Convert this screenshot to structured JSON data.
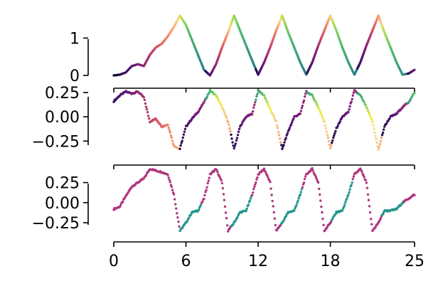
{
  "chart_data": [
    {
      "type": "line",
      "panel": "top",
      "x_range": [
        0,
        25
      ],
      "ylim": [
        0,
        1.6
      ],
      "y_ticks": [
        0,
        1
      ],
      "y_tick_labels": [
        "0",
        "1"
      ],
      "colormap": "plasma-like (purple → pink → orange → yellow → teal)",
      "series": [
        {
          "x": [
            0,
            0.5,
            1.0,
            1.5,
            2.0,
            2.5,
            3.0,
            3.5,
            4.0,
            4.5,
            5.0,
            5.5,
            6.0,
            6.5,
            7.0,
            7.5,
            8.0,
            8.5,
            9.0,
            9.5,
            10.0,
            10.5,
            11.0,
            11.5,
            12.0,
            12.5,
            13.0,
            13.5,
            14.0,
            14.5,
            15.0,
            15.5,
            16.0,
            16.5,
            17.0,
            17.5,
            18.0,
            18.5,
            19.0,
            19.5,
            20.0,
            20.5,
            21.0,
            21.5,
            22.0,
            22.5,
            23.0,
            23.5,
            24.0,
            24.5,
            25.0
          ],
          "y": [
            0.0,
            0.02,
            0.08,
            0.25,
            0.3,
            0.25,
            0.55,
            0.75,
            0.85,
            1.05,
            1.3,
            1.6,
            1.35,
            0.95,
            0.55,
            0.15,
            0.0,
            0.3,
            0.75,
            1.15,
            1.6,
            1.2,
            0.8,
            0.4,
            0.02,
            0.35,
            0.75,
            1.2,
            1.6,
            1.15,
            0.75,
            0.35,
            0.02,
            0.35,
            0.8,
            1.2,
            1.6,
            1.2,
            0.75,
            0.35,
            0.02,
            0.35,
            0.8,
            1.2,
            1.6,
            1.15,
            0.75,
            0.35,
            0.02,
            0.05,
            0.15
          ]
        }
      ]
    },
    {
      "type": "scatter",
      "panel": "middle",
      "x_range": [
        0,
        25
      ],
      "ylim": [
        -0.38,
        0.28
      ],
      "y_ticks": [
        0.25,
        0.0,
        -0.25
      ],
      "y_tick_labels": [
        "0.25",
        "0.00",
        "−0.25"
      ],
      "series": [
        {
          "x": [
            0,
            0.5,
            1.0,
            1.5,
            2.0,
            2.5,
            3.0,
            3.5,
            4.0,
            4.5,
            5.0,
            5.5,
            6.0,
            6.5,
            7.0,
            7.5,
            8.0,
            8.5,
            9.0,
            9.5,
            10.0,
            10.5,
            11.0,
            11.5,
            12.0,
            12.5,
            13.0,
            13.5,
            14.0,
            14.5,
            15.0,
            15.5,
            16.0,
            16.5,
            17.0,
            17.5,
            18.0,
            18.5,
            19.0,
            19.5,
            20.0,
            20.5,
            21.0,
            21.5,
            22.0,
            22.5,
            23.0,
            23.5,
            24.0,
            24.5,
            25.0
          ],
          "y": [
            0.16,
            0.22,
            0.26,
            0.24,
            0.26,
            0.2,
            -0.05,
            -0.02,
            -0.1,
            -0.08,
            -0.3,
            -0.33,
            -0.1,
            -0.02,
            0.05,
            0.15,
            0.27,
            0.22,
            0.1,
            -0.05,
            -0.33,
            -0.1,
            0.0,
            0.03,
            0.27,
            0.22,
            0.08,
            -0.05,
            -0.33,
            -0.15,
            0.0,
            0.03,
            0.26,
            0.22,
            0.1,
            -0.05,
            -0.32,
            -0.12,
            0.0,
            0.05,
            0.27,
            0.22,
            0.1,
            -0.05,
            -0.34,
            -0.1,
            0.0,
            0.03,
            0.1,
            0.15,
            0.25
          ]
        }
      ]
    },
    {
      "type": "scatter",
      "panel": "bottom",
      "x_range": [
        0,
        25
      ],
      "ylim": [
        -0.4,
        0.45
      ],
      "y_ticks": [
        0.25,
        0.0,
        -0.25
      ],
      "y_tick_labels": [
        "0.25",
        "0.00",
        "−0.25"
      ],
      "x_ticks": [
        0,
        6,
        12,
        18,
        25
      ],
      "x_tick_labels": [
        "0",
        "6",
        "12",
        "18",
        "25"
      ],
      "series": [
        {
          "x": [
            0,
            0.5,
            1.0,
            1.5,
            2.0,
            2.5,
            3.0,
            3.5,
            4.0,
            4.5,
            5.0,
            5.5,
            6.0,
            6.5,
            7.0,
            7.5,
            8.0,
            8.5,
            9.0,
            9.5,
            10.0,
            10.5,
            11.0,
            11.5,
            12.0,
            12.5,
            13.0,
            13.5,
            14.0,
            14.5,
            15.0,
            15.5,
            16.0,
            16.5,
            17.0,
            17.5,
            18.0,
            18.5,
            19.0,
            19.5,
            20.0,
            20.5,
            21.0,
            21.5,
            22.0,
            22.5,
            23.0,
            23.5,
            24.0,
            24.5,
            25.0
          ],
          "y": [
            -0.08,
            -0.05,
            0.08,
            0.2,
            0.25,
            0.3,
            0.42,
            0.4,
            0.38,
            0.35,
            0.1,
            -0.35,
            -0.25,
            -0.12,
            -0.1,
            0.05,
            0.35,
            0.42,
            0.25,
            -0.35,
            -0.25,
            -0.12,
            -0.1,
            0.1,
            0.35,
            0.42,
            0.25,
            -0.35,
            -0.25,
            -0.12,
            -0.1,
            0.1,
            0.35,
            0.42,
            0.25,
            -0.35,
            -0.25,
            -0.12,
            -0.1,
            0.1,
            0.35,
            0.42,
            0.25,
            -0.35,
            -0.25,
            -0.1,
            -0.1,
            -0.08,
            0.0,
            0.05,
            0.1
          ]
        }
      ]
    }
  ]
}
